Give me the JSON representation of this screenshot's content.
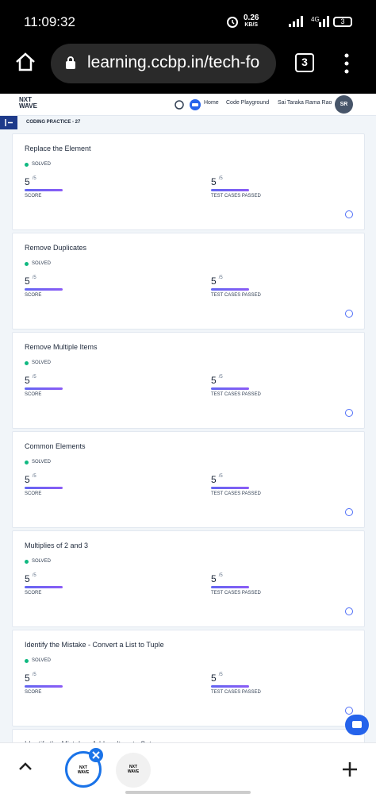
{
  "status_bar": {
    "time": "11:09:32",
    "speed": "0.26",
    "speed_unit": "KB/S",
    "network": "4G",
    "battery": "3"
  },
  "browser": {
    "url": "learning.ccbp.in/tech-fo",
    "tab_count": "3"
  },
  "header": {
    "logo_top": "NXT",
    "logo_bottom": "WAVE",
    "nav": [
      "Home",
      "Code Playground"
    ],
    "user": "Sai Taraka Rama Rao",
    "avatar": "SR"
  },
  "section": {
    "title": "CODING PRACTICE - 27"
  },
  "cards": [
    {
      "title": "Replace the Element",
      "status": "SOLVED",
      "score": "5",
      "score_total": "/5",
      "score_label": "SCORE",
      "tests": "5",
      "tests_total": "/5",
      "tests_label": "TEST CASES PASSED"
    },
    {
      "title": "Remove Duplicates",
      "status": "SOLVED",
      "score": "5",
      "score_total": "/5",
      "score_label": "SCORE",
      "tests": "5",
      "tests_total": "/5",
      "tests_label": "TEST CASES PASSED"
    },
    {
      "title": "Remove Multiple Items",
      "status": "SOLVED",
      "score": "5",
      "score_total": "/5",
      "score_label": "SCORE",
      "tests": "5",
      "tests_total": "/5",
      "tests_label": "TEST CASES PASSED"
    },
    {
      "title": "Common Elements",
      "status": "SOLVED",
      "score": "5",
      "score_total": "/5",
      "score_label": "SCORE",
      "tests": "5",
      "tests_total": "/5",
      "tests_label": "TEST CASES PASSED"
    },
    {
      "title": "Multiplies of 2 and 3",
      "status": "SOLVED",
      "score": "5",
      "score_total": "/5",
      "score_label": "SCORE",
      "tests": "5",
      "tests_total": "/5",
      "tests_label": "TEST CASES PASSED"
    },
    {
      "title": "Identify the Mistake - Convert a List to Tuple",
      "status": "SOLVED",
      "score": "5",
      "score_total": "/5",
      "score_label": "SCORE",
      "tests": "5",
      "tests_total": "/5",
      "tests_label": "TEST CASES PASSED"
    },
    {
      "title": "Identify the Mistake - Add an Item to Set"
    }
  ]
}
